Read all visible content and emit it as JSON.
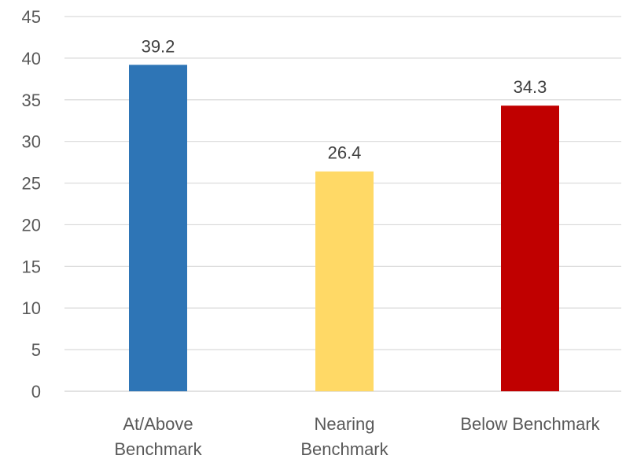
{
  "chart_data": {
    "type": "bar",
    "categories": [
      [
        "At/Above",
        "Benchmark"
      ],
      [
        "Nearing",
        "Benchmark"
      ],
      [
        "Below Benchmark"
      ]
    ],
    "values": [
      39.2,
      26.4,
      34.3
    ],
    "data_labels": [
      "39.2",
      "26.4",
      "34.3"
    ],
    "colors": [
      "#2e75b6",
      "#ffd966",
      "#c00000"
    ],
    "ylim": [
      0,
      45
    ],
    "yticks": [
      0,
      5,
      10,
      15,
      20,
      25,
      30,
      35,
      40,
      45
    ],
    "ytick_labels": [
      "0",
      "5",
      "10",
      "15",
      "20",
      "25",
      "30",
      "35",
      "40",
      "45"
    ],
    "grid": true,
    "title": "",
    "xlabel": "",
    "ylabel": ""
  }
}
